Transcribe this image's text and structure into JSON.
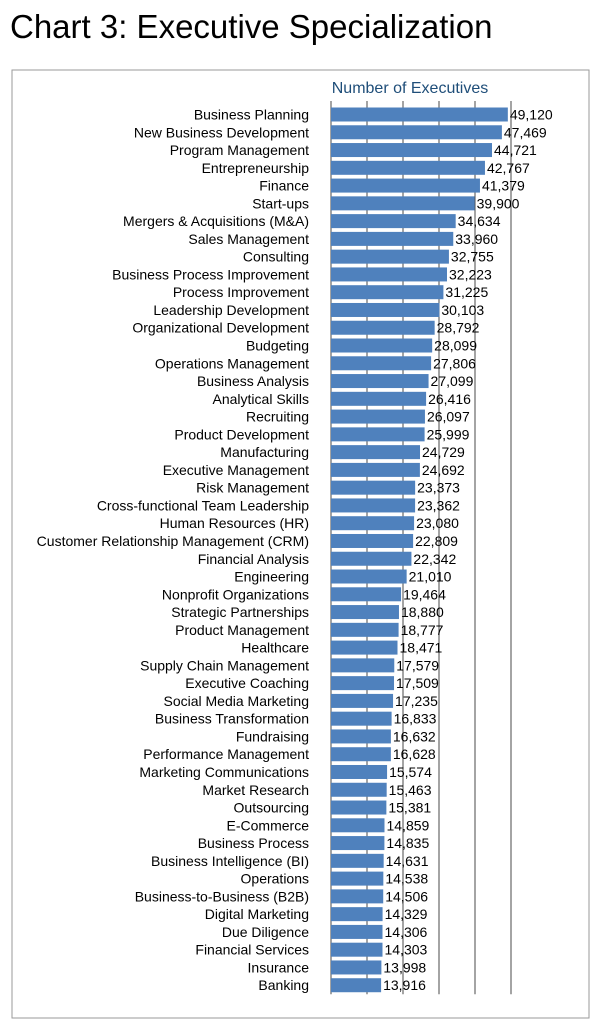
{
  "title": "Chart 3: Executive Specialization",
  "chart_data": {
    "type": "bar",
    "orientation": "horizontal",
    "subtitle": "Number of Executives",
    "xlim": [
      0,
      50000
    ],
    "grid": true,
    "legend": "none",
    "bar_color": "#4f81bd",
    "subtitle_color": "#1f4e79",
    "categories": [
      "Business Planning",
      "New Business Development",
      "Program Management",
      "Entrepreneurship",
      "Finance",
      "Start-ups",
      "Mergers & Acquisitions (M&A)",
      "Sales Management",
      "Consulting",
      "Business Process Improvement",
      "Process Improvement",
      "Leadership Development",
      "Organizational Development",
      "Budgeting",
      "Operations Management",
      "Business Analysis",
      "Analytical Skills",
      "Recruiting",
      "Product Development",
      "Manufacturing",
      "Executive Management",
      "Risk Management",
      "Cross-functional Team Leadership",
      "Human Resources (HR)",
      "Customer Relationship Management (CRM)",
      "Financial Analysis",
      "Engineering",
      "Nonprofit Organizations",
      "Strategic Partnerships",
      "Product Management",
      "Healthcare",
      "Supply Chain Management",
      "Executive Coaching",
      "Social Media Marketing",
      "Business Transformation",
      "Fundraising",
      "Performance Management",
      "Marketing Communications",
      "Market Research",
      "Outsourcing",
      "E-Commerce",
      "Business Process",
      "Business Intelligence (BI)",
      "Operations",
      "Business-to-Business (B2B)",
      "Digital Marketing",
      "Due Diligence",
      "Financial Services",
      "Insurance",
      "Banking"
    ],
    "values": [
      49120,
      47469,
      44721,
      42767,
      41379,
      39900,
      34634,
      33960,
      32755,
      32223,
      31225,
      30103,
      28792,
      28099,
      27806,
      27099,
      26416,
      26097,
      25999,
      24729,
      24692,
      23373,
      23362,
      23080,
      22809,
      22342,
      21010,
      19464,
      18880,
      18777,
      18471,
      17579,
      17509,
      17235,
      16833,
      16632,
      16628,
      15574,
      15463,
      15381,
      14859,
      14835,
      14631,
      14538,
      14506,
      14329,
      14306,
      14303,
      13998,
      13916
    ],
    "data_labels": [
      "49,120",
      "47,469",
      "44,721",
      "42,767",
      "41,379",
      "39,900",
      "34,634",
      "33,960",
      "32,755",
      "32,223",
      "31,225",
      "30,103",
      "28,792",
      "28,099",
      "27,806",
      "27,099",
      "26,416",
      "26,097",
      "25,999",
      "24,729",
      "24,692",
      "23,373",
      "23,362",
      "23,080",
      "22,809",
      "22,342",
      "21,010",
      "19,464",
      "18,880",
      "18,777",
      "18,471",
      "17,579",
      "17,509",
      "17,235",
      "16,833",
      "16,632",
      "16,628",
      "15,574",
      "15,463",
      "15,381",
      "14,859",
      "14,835",
      "14,631",
      "14,538",
      "14,506",
      "14,329",
      "14,306",
      "14,303",
      "13,998",
      "13,916"
    ]
  }
}
